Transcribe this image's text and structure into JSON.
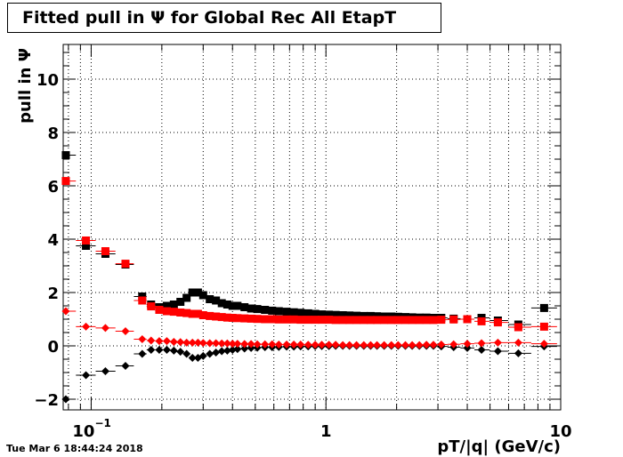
{
  "chart_data": {
    "type": "scatter",
    "title": "Fitted pull in  Ψ  for Global Rec All EtapT",
    "xlabel": "pT/|q| (GeV/c)",
    "ylabel": "pull in  Ψ",
    "xscale": "log",
    "xlim": [
      0.076,
      10
    ],
    "ylim": [
      -2.4,
      11.3
    ],
    "grid": true,
    "x_ticks": [
      {
        "value": 0.1,
        "label": "10",
        "sup": "−1"
      },
      {
        "value": 1,
        "label": "1",
        "sup": ""
      },
      {
        "value": 10,
        "label": "10",
        "sup": ""
      }
    ],
    "y_ticks": [
      {
        "value": -2,
        "label": "−2"
      },
      {
        "value": 0,
        "label": "0"
      },
      {
        "value": 2,
        "label": "2"
      },
      {
        "value": 4,
        "label": "4"
      },
      {
        "value": 6,
        "label": "6"
      },
      {
        "value": 8,
        "label": "8"
      },
      {
        "value": 10,
        "label": "10"
      }
    ],
    "x": [
      0.078,
      0.095,
      0.115,
      0.14,
      0.165,
      0.18,
      0.195,
      0.21,
      0.225,
      0.24,
      0.255,
      0.27,
      0.285,
      0.3,
      0.32,
      0.34,
      0.36,
      0.38,
      0.4,
      0.42,
      0.45,
      0.48,
      0.51,
      0.55,
      0.59,
      0.63,
      0.68,
      0.73,
      0.78,
      0.84,
      0.9,
      0.96,
      1.03,
      1.1,
      1.18,
      1.26,
      1.35,
      1.45,
      1.55,
      1.65,
      1.77,
      1.9,
      2.03,
      2.18,
      2.33,
      2.5,
      2.68,
      2.87,
      3.1,
      3.5,
      4.0,
      4.6,
      5.4,
      6.6,
      8.5
    ],
    "series": [
      {
        "name": "",
        "marker": "square",
        "color": "#000000",
        "values": [
          7.15,
          3.75,
          3.45,
          3.05,
          1.85,
          1.55,
          1.45,
          1.5,
          1.55,
          1.65,
          1.8,
          2.0,
          2.0,
          1.9,
          1.75,
          1.7,
          1.6,
          1.55,
          1.5,
          1.5,
          1.45,
          1.4,
          1.38,
          1.35,
          1.32,
          1.3,
          1.28,
          1.26,
          1.24,
          1.22,
          1.2,
          1.18,
          1.17,
          1.16,
          1.15,
          1.14,
          1.13,
          1.12,
          1.12,
          1.11,
          1.1,
          1.1,
          1.09,
          1.08,
          1.07,
          1.06,
          1.06,
          1.05,
          1.05,
          1.02,
          1.0,
          1.05,
          0.95,
          0.8,
          1.42
        ]
      },
      {
        "name": "",
        "marker": "square",
        "color": "#ff0000",
        "values": [
          6.18,
          3.95,
          3.55,
          3.08,
          1.7,
          1.48,
          1.35,
          1.3,
          1.28,
          1.25,
          1.23,
          1.2,
          1.2,
          1.15,
          1.12,
          1.1,
          1.08,
          1.06,
          1.05,
          1.04,
          1.03,
          1.02,
          1.01,
          1.0,
          1.0,
          0.99,
          0.99,
          0.99,
          0.98,
          0.98,
          0.98,
          0.98,
          0.98,
          0.97,
          0.97,
          0.97,
          0.97,
          0.97,
          0.97,
          0.97,
          0.97,
          0.97,
          0.97,
          0.97,
          0.97,
          0.97,
          0.97,
          0.97,
          0.98,
          0.99,
          1.0,
          0.92,
          0.88,
          0.7,
          0.72
        ]
      },
      {
        "name": "",
        "marker": "diamond",
        "color": "#000000",
        "values": [
          -2.0,
          -1.1,
          -0.95,
          -0.75,
          -0.3,
          -0.15,
          -0.15,
          -0.15,
          -0.18,
          -0.22,
          -0.3,
          -0.45,
          -0.45,
          -0.38,
          -0.3,
          -0.25,
          -0.2,
          -0.18,
          -0.15,
          -0.12,
          -0.1,
          -0.08,
          -0.07,
          -0.05,
          -0.05,
          -0.04,
          -0.03,
          -0.03,
          -0.02,
          -0.02,
          -0.01,
          -0.01,
          -0.01,
          0.0,
          0.0,
          0.0,
          0.0,
          0.0,
          0.0,
          0.0,
          0.0,
          0.0,
          0.0,
          0.0,
          0.0,
          0.0,
          0.0,
          0.0,
          -0.02,
          -0.05,
          -0.08,
          -0.15,
          -0.2,
          -0.28,
          -0.02
        ]
      },
      {
        "name": "",
        "marker": "diamond",
        "color": "#ff0000",
        "values": [
          1.3,
          0.72,
          0.67,
          0.55,
          0.25,
          0.2,
          0.18,
          0.18,
          0.15,
          0.14,
          0.12,
          0.12,
          0.12,
          0.11,
          0.1,
          0.1,
          0.09,
          0.09,
          0.08,
          0.08,
          0.07,
          0.07,
          0.06,
          0.06,
          0.06,
          0.05,
          0.05,
          0.05,
          0.05,
          0.04,
          0.04,
          0.04,
          0.04,
          0.04,
          0.03,
          0.03,
          0.03,
          0.03,
          0.03,
          0.03,
          0.03,
          0.03,
          0.03,
          0.03,
          0.03,
          0.03,
          0.04,
          0.04,
          0.05,
          0.06,
          0.08,
          0.1,
          0.12,
          0.12,
          0.08
        ]
      }
    ],
    "timestamp": "Tue Mar  6 18:44:24 2018"
  }
}
